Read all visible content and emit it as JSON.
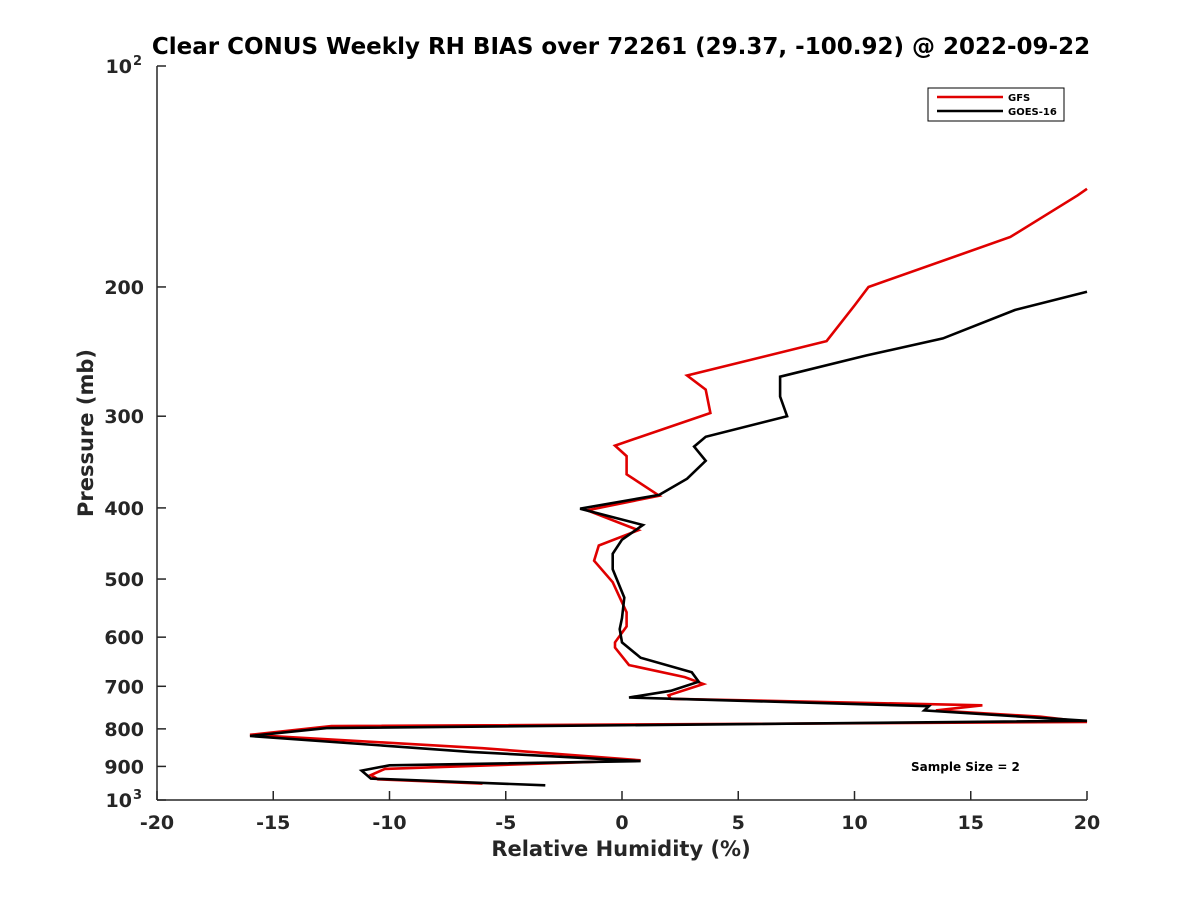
{
  "chart_data": {
    "type": "line",
    "title": "Clear CONUS Weekly RH BIAS over 72261 (29.37, -100.92) @ 2022-09-22",
    "xlabel": "Relative Humidity (%)",
    "ylabel": "Pressure (mb)",
    "xlim": [
      -20,
      20
    ],
    "ylim": [
      100,
      1000
    ],
    "y_scale": "log",
    "y_reversed": true,
    "grid": false,
    "legend_position": "top-right",
    "x_ticks": [
      -20,
      -15,
      -10,
      -5,
      0,
      5,
      10,
      15,
      20
    ],
    "x_tick_labels": [
      "-20",
      "-15",
      "-10",
      "-5",
      "0",
      "5",
      "10",
      "15",
      "20"
    ],
    "y_ticks": [
      200,
      300,
      400,
      500,
      600,
      700,
      800,
      900
    ],
    "y_tick_labels": [
      "200",
      "300",
      "400",
      "500",
      "600",
      "700",
      "800",
      "900"
    ],
    "y_tick_top": {
      "base": "10",
      "exp": "2"
    },
    "y_tick_bottom": {
      "base": "10",
      "exp": "3"
    },
    "annotation": "Sample Size = 2",
    "series": [
      {
        "name": "GFS",
        "color": "#e00000",
        "points": [
          [
            20.0,
            147
          ],
          [
            19.6,
            150
          ],
          [
            16.7,
            171
          ],
          [
            10.6,
            200
          ],
          [
            10.0,
            212
          ],
          [
            8.8,
            237
          ],
          [
            2.8,
            264
          ],
          [
            3.6,
            276
          ],
          [
            3.8,
            297
          ],
          [
            -0.3,
            329
          ],
          [
            0.2,
            340
          ],
          [
            0.2,
            360
          ],
          [
            1.6,
            385
          ],
          [
            -1.5,
            403
          ],
          [
            0.7,
            429
          ],
          [
            -1.0,
            450
          ],
          [
            -1.2,
            472
          ],
          [
            -0.4,
            505
          ],
          [
            0.2,
            555
          ],
          [
            0.2,
            580
          ],
          [
            -0.3,
            610
          ],
          [
            -0.3,
            620
          ],
          [
            0.3,
            655
          ],
          [
            2.7,
            680
          ],
          [
            3.5,
            695
          ],
          [
            2.0,
            720
          ],
          [
            2.1,
            728
          ],
          [
            15.5,
            743
          ],
          [
            13.5,
            755
          ],
          [
            18.0,
            770
          ],
          [
            20.0,
            783
          ],
          [
            -12.5,
            793
          ],
          [
            -16.0,
            815
          ],
          [
            -6.0,
            850
          ],
          [
            0.8,
            883
          ],
          [
            -10.2,
            907
          ],
          [
            -10.8,
            925
          ],
          [
            -10.5,
            937
          ],
          [
            -6.0,
            950
          ]
        ]
      },
      {
        "name": "GOES-16",
        "color": "#000000",
        "points": [
          [
            20.0,
            203
          ],
          [
            16.9,
            215
          ],
          [
            13.8,
            235
          ],
          [
            10.5,
            248
          ],
          [
            6.8,
            265
          ],
          [
            6.8,
            282
          ],
          [
            7.1,
            300
          ],
          [
            3.6,
            320
          ],
          [
            3.1,
            330
          ],
          [
            3.6,
            345
          ],
          [
            2.8,
            365
          ],
          [
            1.6,
            384
          ],
          [
            -1.8,
            401
          ],
          [
            0.9,
            422
          ],
          [
            0.0,
            442
          ],
          [
            -0.4,
            462
          ],
          [
            -0.4,
            485
          ],
          [
            0.1,
            530
          ],
          [
            0.0,
            565
          ],
          [
            -0.1,
            585
          ],
          [
            0.0,
            610
          ],
          [
            0.8,
            640
          ],
          [
            3.0,
            670
          ],
          [
            3.3,
            690
          ],
          [
            2.1,
            710
          ],
          [
            0.3,
            725
          ],
          [
            13.2,
            745
          ],
          [
            13.0,
            755
          ],
          [
            20.0,
            780
          ],
          [
            -12.7,
            798
          ],
          [
            -16.0,
            818
          ],
          [
            -6.5,
            860
          ],
          [
            0.8,
            885
          ],
          [
            -10.0,
            897
          ],
          [
            -11.2,
            912
          ],
          [
            -10.8,
            935
          ],
          [
            -3.3,
            955
          ]
        ]
      }
    ]
  }
}
